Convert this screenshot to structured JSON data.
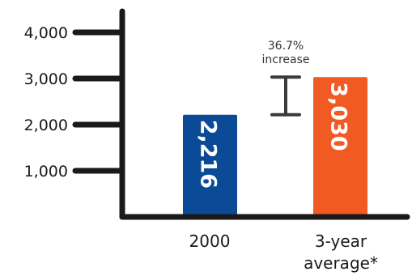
{
  "chart_data": {
    "type": "bar",
    "categories": [
      "2000",
      "3-year average*"
    ],
    "category_lines": [
      [
        "2000"
      ],
      [
        "3-year",
        "average*"
      ]
    ],
    "values": [
      2216,
      3030
    ],
    "value_labels": [
      "2,216",
      "3,030"
    ],
    "yticks": [
      1000,
      2000,
      3000,
      4000
    ],
    "ytick_labels": [
      "1,000",
      "2,000",
      "3,000",
      "4,000"
    ],
    "ylim": [
      0,
      4000
    ],
    "grid": false,
    "colors": {
      "bars": [
        "#0a4a96",
        "#f15a22"
      ],
      "axis": "#1a1a1a",
      "bracket": "#3a3a3a"
    },
    "annotation": {
      "lines": [
        "36.7%",
        "increase"
      ],
      "from_value": 2216,
      "to_value": 3030
    }
  }
}
